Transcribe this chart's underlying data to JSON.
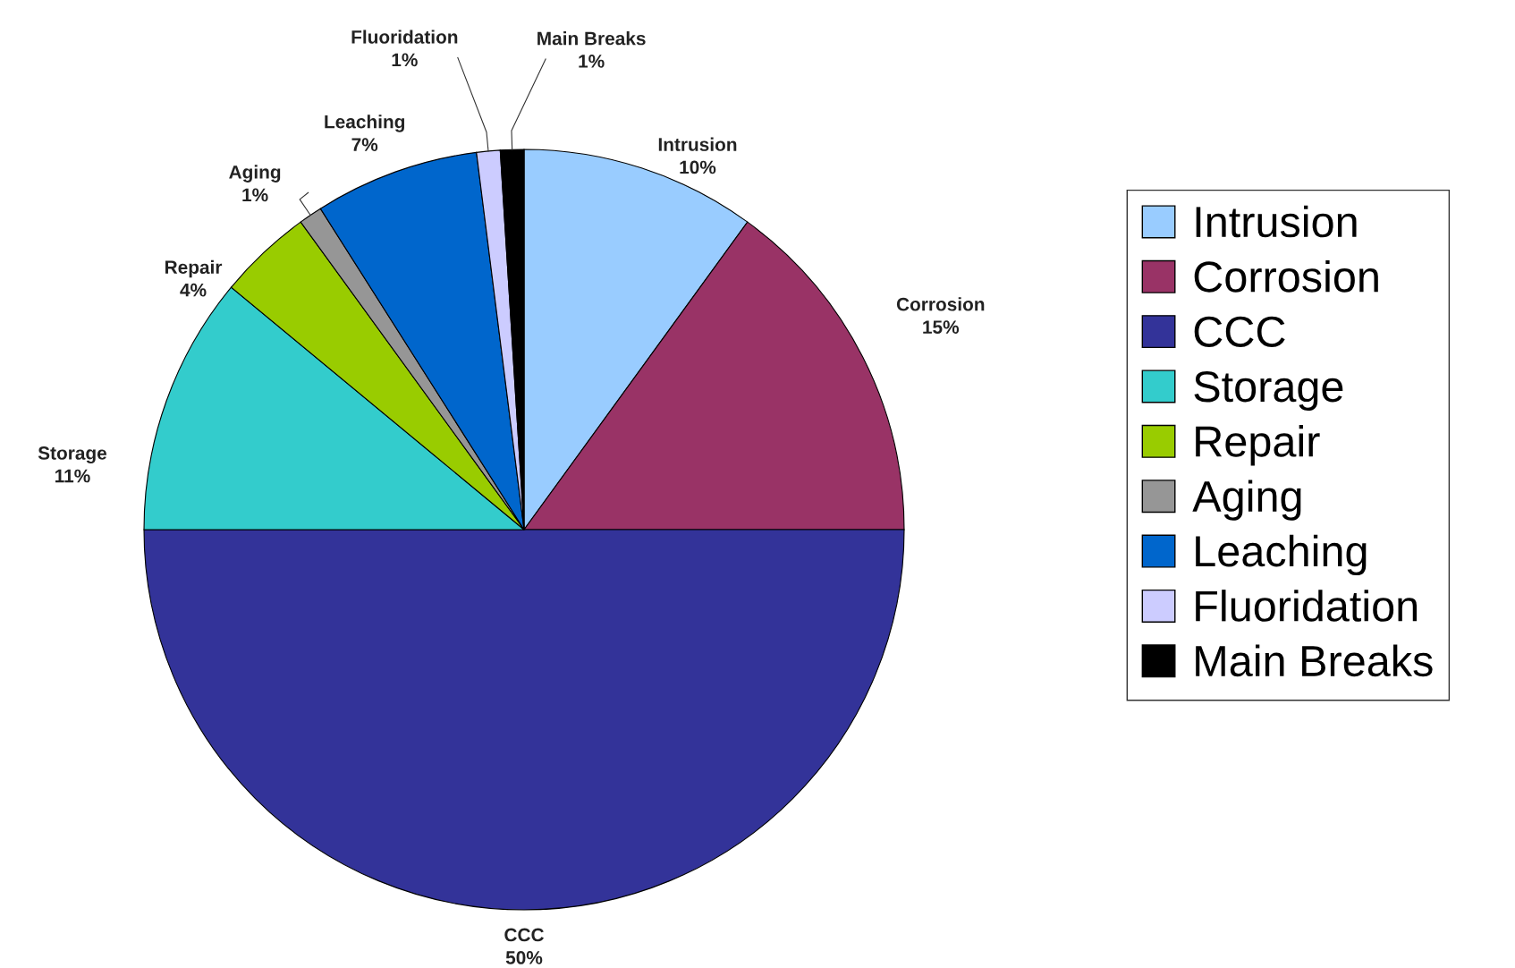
{
  "chart_data": {
    "type": "pie",
    "categories": [
      "Intrusion",
      "Corrosion",
      "CCC",
      "Storage",
      "Repair",
      "Aging",
      "Leaching",
      "Fluoridation",
      "Main Breaks"
    ],
    "values": [
      10,
      15,
      50,
      11,
      4,
      1,
      7,
      1,
      1
    ],
    "value_labels": [
      "10%",
      "15%",
      "50%",
      "11%",
      "4%",
      "1%",
      "7%",
      "1%",
      "1%"
    ],
    "colors": [
      "#99ccff",
      "#993366",
      "#333399",
      "#33cccc",
      "#99cc00",
      "#969696",
      "#0066cc",
      "#ccccff",
      "#000000"
    ],
    "legend": "right"
  }
}
